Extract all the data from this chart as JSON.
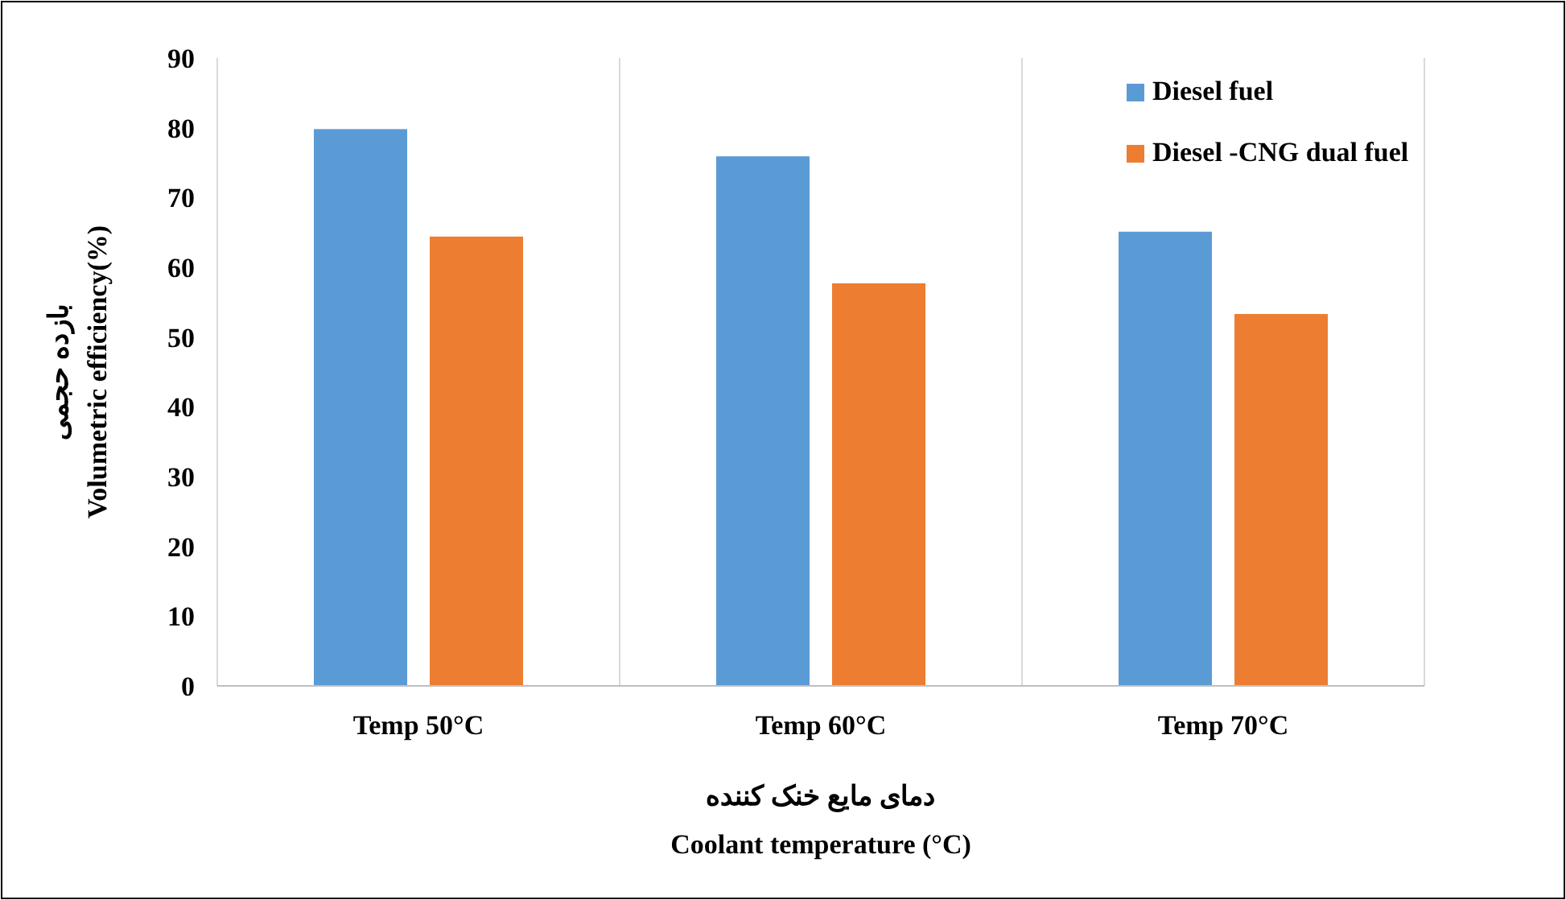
{
  "chart_data": {
    "type": "bar",
    "categories": [
      "Temp 50°C",
      "Temp 60°C",
      "Temp 70°C"
    ],
    "series": [
      {
        "name": "Diesel fuel",
        "color": "#5b9bd5",
        "values": [
          79.8,
          75.9,
          65.1
        ]
      },
      {
        "name": "Diesel -CNG dual fuel",
        "color": "#ed7d31",
        "values": [
          64.4,
          57.7,
          53.3
        ]
      }
    ],
    "ylim": [
      0,
      90
    ],
    "yticks": [
      0,
      10,
      20,
      30,
      40,
      50,
      60,
      70,
      80,
      90
    ],
    "ylabel": "بازده حجمی\nVolumetric efficiency(%)",
    "xlabel": "دمای مایع خنک کننده\nCoolant temperature (°C)",
    "grid": "x",
    "legend": "top right"
  }
}
